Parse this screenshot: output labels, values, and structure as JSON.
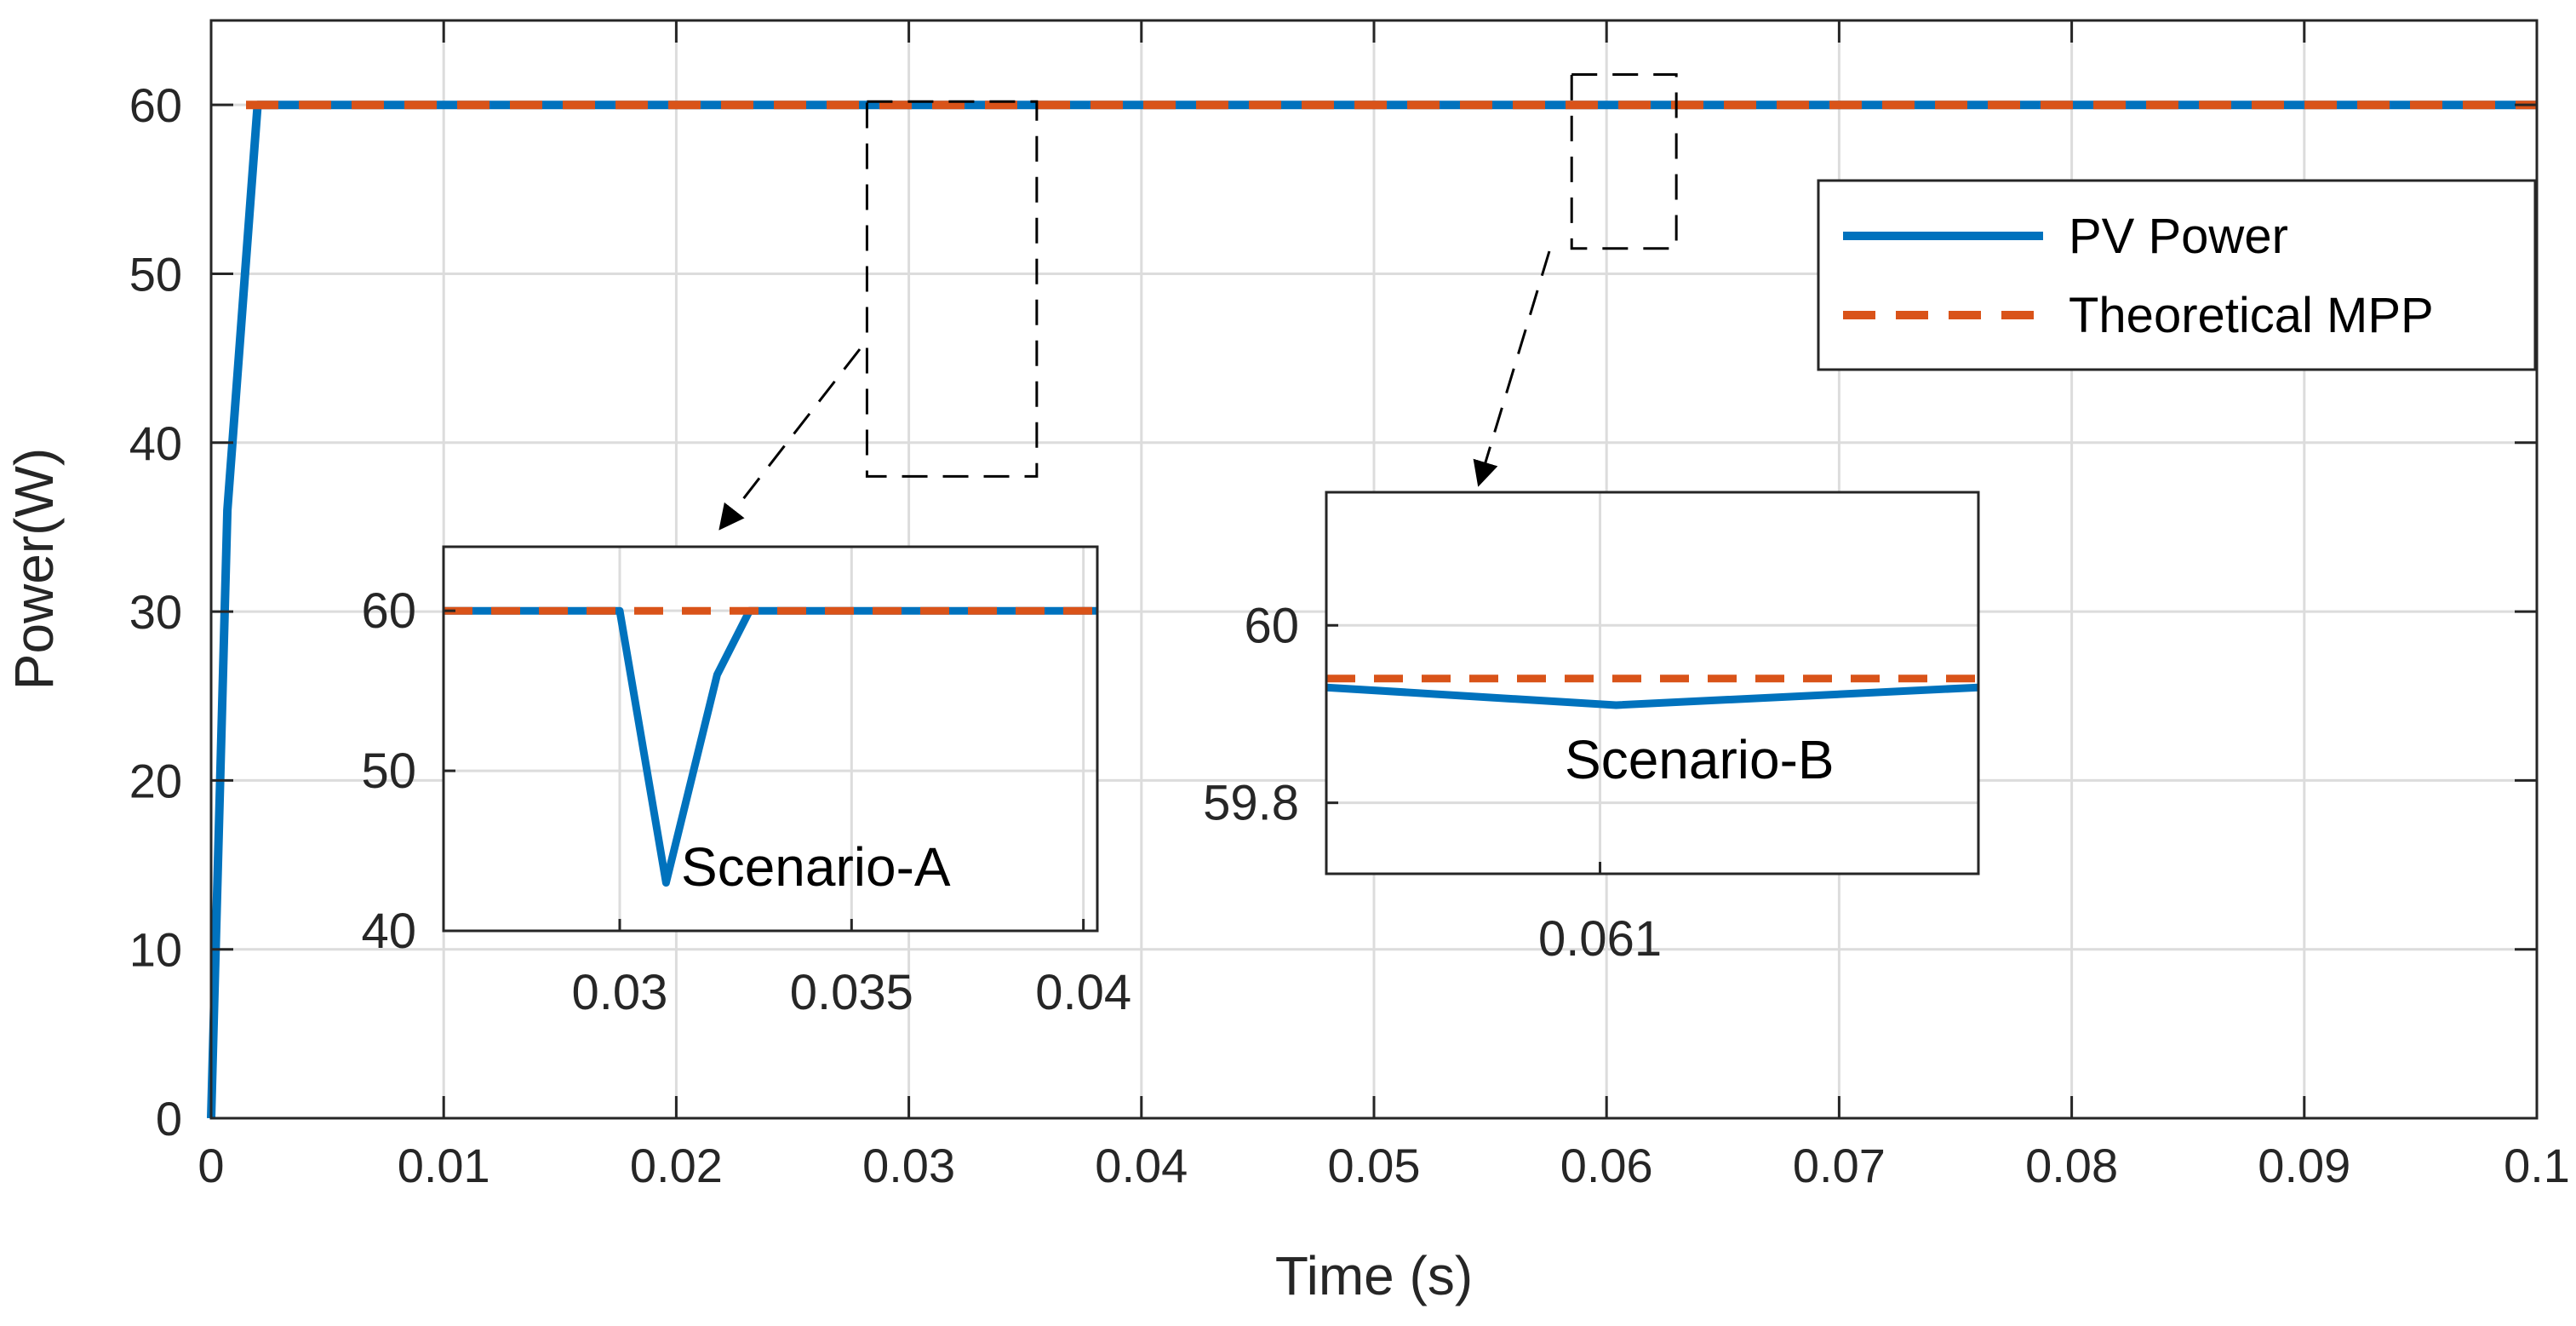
{
  "chart_data": [
    {
      "type": "line",
      "name": "main",
      "xlabel": "Time (s)",
      "ylabel": "Power(W)",
      "xlim": [
        0,
        0.1
      ],
      "ylim": [
        0,
        65
      ],
      "xticks": [
        0,
        0.01,
        0.02,
        0.03,
        0.04,
        0.05,
        0.06,
        0.07,
        0.08,
        0.09,
        0.1
      ],
      "xtick_labels": [
        "0",
        "0.01",
        "0.02",
        "0.03",
        "0.04",
        "0.05",
        "0.06",
        "0.07",
        "0.08",
        "0.09",
        "0.1"
      ],
      "yticks": [
        0,
        10,
        20,
        30,
        40,
        50,
        60
      ],
      "ytick_labels": [
        "0",
        "10",
        "20",
        "30",
        "40",
        "50",
        "60"
      ],
      "grid": true,
      "legend_position": "top-right",
      "series": [
        {
          "name": "PV Power",
          "color": "#0072BD",
          "style": "solid",
          "x": [
            0,
            0.0007,
            0.002,
            0.004,
            0.1
          ],
          "y": [
            0,
            36,
            60,
            60,
            60
          ]
        },
        {
          "name": "Theoretical MPP",
          "color": "#D95319",
          "style": "dashed",
          "x": [
            0.0015,
            0.1
          ],
          "y": [
            60,
            60
          ]
        }
      ],
      "annotation_boxes": [
        {
          "label": "zoom-A",
          "x_range": [
            0.0282,
            0.0355
          ],
          "y_range": [
            38,
            60.2
          ]
        },
        {
          "label": "zoom-B",
          "x_range": [
            0.0585,
            0.063
          ],
          "y_range": [
            51.5,
            61.8
          ]
        }
      ]
    },
    {
      "type": "line",
      "name": "inset-A",
      "title": "Scenario-A",
      "xlim": [
        0.0262,
        0.0403
      ],
      "ylim": [
        40,
        64
      ],
      "xticks": [
        0.03,
        0.035,
        0.04
      ],
      "xtick_labels": [
        "0.03",
        "0.035",
        "0.04"
      ],
      "yticks": [
        40,
        50,
        60
      ],
      "ytick_labels": [
        "40",
        "50",
        "60"
      ],
      "grid": true,
      "series": [
        {
          "name": "PV Power",
          "color": "#0072BD",
          "style": "solid",
          "x": [
            0.0262,
            0.03,
            0.031,
            0.0321,
            0.0328,
            0.0403
          ],
          "y": [
            60,
            60,
            43,
            56,
            60,
            60
          ]
        },
        {
          "name": "Theoretical MPP",
          "color": "#D95319",
          "style": "dashed",
          "x": [
            0.0262,
            0.0403
          ],
          "y": [
            60,
            60
          ]
        }
      ]
    },
    {
      "type": "line",
      "name": "inset-B",
      "title": "Scenario-B",
      "xlim": [
        0.0576,
        0.0657
      ],
      "ylim": [
        59.72,
        60.15
      ],
      "xticks": [
        0.061
      ],
      "xtick_labels": [
        "0.061"
      ],
      "yticks": [
        59.8,
        60
      ],
      "ytick_labels": [
        "59.8",
        "60"
      ],
      "grid": true,
      "series": [
        {
          "name": "PV Power",
          "color": "#0072BD",
          "style": "solid",
          "x": [
            0.0576,
            0.0612,
            0.0657
          ],
          "y": [
            59.93,
            59.91,
            59.93
          ]
        },
        {
          "name": "Theoretical MPP",
          "color": "#D95319",
          "style": "dashed",
          "x": [
            0.0576,
            0.0657
          ],
          "y": [
            59.94,
            59.94
          ]
        }
      ]
    }
  ],
  "legend": {
    "items": [
      {
        "label": "PV Power",
        "color": "#0072BD",
        "style": "solid"
      },
      {
        "label": "Theoretical MPP",
        "color": "#D95319",
        "style": "dashed"
      }
    ]
  },
  "colors": {
    "axis": "#262626",
    "grid": "#DCDCDC",
    "background": "#FFFFFF"
  }
}
